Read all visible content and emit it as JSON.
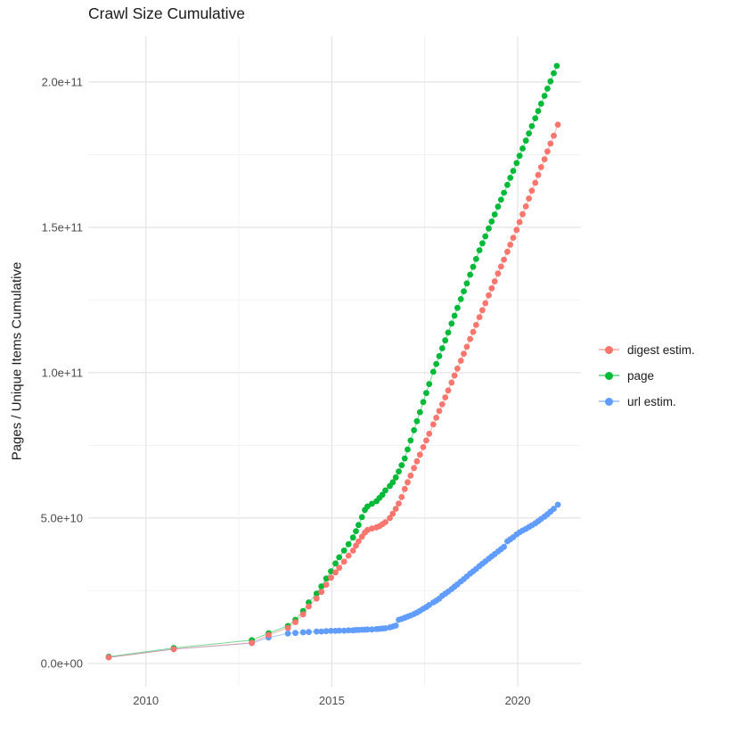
{
  "chart_data": {
    "type": "line",
    "title": "Crawl Size Cumulative",
    "xlabel": "",
    "ylabel": "Pages / Unique Items Cumulative",
    "values_unit": "items, values stored in billions (1e9)",
    "grid": "on",
    "legend_position": "right",
    "xlim": [
      2008.45,
      2021.7
    ],
    "ylim_e9": [
      -8,
      215.6
    ],
    "x_breaks": [
      2010,
      2015,
      2020
    ],
    "x_break_labels": [
      "2010",
      "2015",
      "2020"
    ],
    "x_minor_breaks": [
      2012.5,
      2017.5
    ],
    "y_breaks_e9": [
      0,
      50,
      100,
      150,
      200
    ],
    "y_break_labels": [
      "0.0e+00",
      "5.0e+10",
      "1.0e+11",
      "1.5e+11",
      "2.0e+11"
    ],
    "y_minor_breaks_e9": [
      25,
      75,
      125,
      175
    ],
    "series": [
      {
        "name": "digest estim.",
        "color": "#F8766D",
        "points": [
          [
            2009.0,
            2.1
          ],
          [
            2010.75,
            4.9
          ],
          [
            2012.85,
            7.1
          ],
          [
            2013.3,
            9.8
          ],
          [
            2013.82,
            12.2
          ],
          [
            2014.02,
            14.2
          ],
          [
            2014.23,
            16.9
          ],
          [
            2014.38,
            19.6
          ],
          [
            2014.59,
            22.3
          ],
          [
            2014.72,
            24.6
          ],
          [
            2014.85,
            27.1
          ],
          [
            2014.98,
            29.5
          ],
          [
            2015.1,
            31.3
          ],
          [
            2015.2,
            32.9
          ],
          [
            2015.33,
            35.0
          ],
          [
            2015.45,
            37.1
          ],
          [
            2015.57,
            38.8
          ],
          [
            2015.65,
            40.5
          ],
          [
            2015.72,
            42.0
          ],
          [
            2015.81,
            43.6
          ],
          [
            2015.89,
            45.0
          ],
          [
            2015.96,
            45.9
          ],
          [
            2016.08,
            46.4
          ],
          [
            2016.2,
            46.8
          ],
          [
            2016.28,
            47.2
          ],
          [
            2016.36,
            47.9
          ],
          [
            2016.44,
            48.6
          ],
          [
            2016.56,
            50.0
          ],
          [
            2016.64,
            51.5
          ],
          [
            2016.72,
            53.2
          ],
          [
            2016.8,
            55.0
          ],
          [
            2016.88,
            57.2
          ],
          [
            2016.96,
            60.0
          ],
          [
            2017.04,
            62.3
          ],
          [
            2017.12,
            64.6
          ],
          [
            2017.21,
            67.2
          ],
          [
            2017.29,
            69.5
          ],
          [
            2017.37,
            71.8
          ],
          [
            2017.46,
            74.4
          ],
          [
            2017.54,
            76.7
          ],
          [
            2017.62,
            79.0
          ],
          [
            2017.73,
            82.2
          ],
          [
            2017.81,
            84.5
          ],
          [
            2017.89,
            86.8
          ],
          [
            2017.97,
            89.1
          ],
          [
            2018.05,
            91.5
          ],
          [
            2018.13,
            93.9
          ],
          [
            2018.22,
            96.6
          ],
          [
            2018.3,
            99.0
          ],
          [
            2018.38,
            101.4
          ],
          [
            2018.47,
            104.1
          ],
          [
            2018.55,
            106.5
          ],
          [
            2018.63,
            108.9
          ],
          [
            2018.72,
            111.6
          ],
          [
            2018.8,
            114.0
          ],
          [
            2018.88,
            116.4
          ],
          [
            2018.97,
            119.1
          ],
          [
            2019.05,
            121.5
          ],
          [
            2019.13,
            123.9
          ],
          [
            2019.22,
            126.6
          ],
          [
            2019.3,
            129.0
          ],
          [
            2019.38,
            131.4
          ],
          [
            2019.47,
            134.1
          ],
          [
            2019.55,
            136.5
          ],
          [
            2019.63,
            138.9
          ],
          [
            2019.72,
            141.6
          ],
          [
            2019.8,
            144.0
          ],
          [
            2019.88,
            146.4
          ],
          [
            2019.97,
            149.1
          ],
          [
            2020.05,
            151.8
          ],
          [
            2020.13,
            154.5
          ],
          [
            2020.22,
            157.2
          ],
          [
            2020.3,
            159.9
          ],
          [
            2020.38,
            162.6
          ],
          [
            2020.47,
            165.3
          ],
          [
            2020.55,
            168.0
          ],
          [
            2020.63,
            170.7
          ],
          [
            2020.72,
            173.4
          ],
          [
            2020.8,
            176.1
          ],
          [
            2020.88,
            178.8
          ],
          [
            2020.97,
            181.5
          ],
          [
            2021.08,
            185.3
          ]
        ]
      },
      {
        "name": "page",
        "color": "#00BA38",
        "points": [
          [
            2009.0,
            2.3
          ],
          [
            2010.75,
            5.3
          ],
          [
            2012.85,
            8.0
          ],
          [
            2013.3,
            10.4
          ],
          [
            2013.82,
            12.9
          ],
          [
            2014.02,
            15.0
          ],
          [
            2014.23,
            18.0
          ],
          [
            2014.38,
            21.0
          ],
          [
            2014.59,
            24.0
          ],
          [
            2014.72,
            26.5
          ],
          [
            2014.85,
            29.2
          ],
          [
            2014.98,
            31.7
          ],
          [
            2015.1,
            34.4
          ],
          [
            2015.2,
            36.5
          ],
          [
            2015.33,
            38.8
          ],
          [
            2015.45,
            41.0
          ],
          [
            2015.57,
            43.3
          ],
          [
            2015.65,
            45.5
          ],
          [
            2015.72,
            47.6
          ],
          [
            2015.81,
            50.3
          ],
          [
            2015.89,
            52.8
          ],
          [
            2015.96,
            54.0
          ],
          [
            2016.08,
            54.9
          ],
          [
            2016.2,
            55.8
          ],
          [
            2016.28,
            56.9
          ],
          [
            2016.36,
            58.0
          ],
          [
            2016.44,
            59.5
          ],
          [
            2016.56,
            61.0
          ],
          [
            2016.64,
            62.3
          ],
          [
            2016.72,
            64.0
          ],
          [
            2016.8,
            66.0
          ],
          [
            2016.88,
            68.2
          ],
          [
            2016.96,
            70.5
          ],
          [
            2017.04,
            73.6
          ],
          [
            2017.12,
            76.7
          ],
          [
            2017.21,
            80.2
          ],
          [
            2017.29,
            83.3
          ],
          [
            2017.37,
            86.4
          ],
          [
            2017.46,
            89.9
          ],
          [
            2017.54,
            93.0
          ],
          [
            2017.62,
            96.1
          ],
          [
            2017.73,
            100.3
          ],
          [
            2017.81,
            103.0
          ],
          [
            2017.89,
            105.7
          ],
          [
            2017.97,
            108.4
          ],
          [
            2018.05,
            111.1
          ],
          [
            2018.13,
            113.8
          ],
          [
            2018.22,
            116.9
          ],
          [
            2018.3,
            119.6
          ],
          [
            2018.38,
            122.3
          ],
          [
            2018.47,
            125.3
          ],
          [
            2018.55,
            128.0
          ],
          [
            2018.63,
            130.7
          ],
          [
            2018.72,
            133.7
          ],
          [
            2018.8,
            136.4
          ],
          [
            2018.88,
            139.1
          ],
          [
            2018.97,
            142.1
          ],
          [
            2019.05,
            144.5
          ],
          [
            2019.13,
            146.9
          ],
          [
            2019.22,
            149.6
          ],
          [
            2019.3,
            152.0
          ],
          [
            2019.38,
            154.4
          ],
          [
            2019.47,
            157.1
          ],
          [
            2019.55,
            159.5
          ],
          [
            2019.63,
            161.9
          ],
          [
            2019.72,
            164.6
          ],
          [
            2019.8,
            167.0
          ],
          [
            2019.88,
            169.4
          ],
          [
            2019.97,
            172.1
          ],
          [
            2020.05,
            174.6
          ],
          [
            2020.13,
            177.1
          ],
          [
            2020.22,
            179.8
          ],
          [
            2020.3,
            182.3
          ],
          [
            2020.38,
            184.8
          ],
          [
            2020.47,
            187.5
          ],
          [
            2020.55,
            190.0
          ],
          [
            2020.63,
            192.5
          ],
          [
            2020.72,
            195.2
          ],
          [
            2020.8,
            197.7
          ],
          [
            2020.88,
            200.2
          ],
          [
            2020.97,
            203.0
          ],
          [
            2021.05,
            205.5
          ]
        ]
      },
      {
        "name": "url estim.",
        "color": "#619CFF",
        "points": [
          [
            2009.0,
            2.1
          ],
          [
            2010.75,
            4.9
          ],
          [
            2012.85,
            7.0
          ],
          [
            2013.3,
            8.9
          ],
          [
            2013.82,
            10.3
          ],
          [
            2014.02,
            10.5
          ],
          [
            2014.23,
            10.7
          ],
          [
            2014.38,
            10.8
          ],
          [
            2014.59,
            11.0
          ],
          [
            2014.72,
            11.0
          ],
          [
            2014.85,
            11.1
          ],
          [
            2014.98,
            11.2
          ],
          [
            2015.1,
            11.2
          ],
          [
            2015.2,
            11.3
          ],
          [
            2015.33,
            11.3
          ],
          [
            2015.45,
            11.4
          ],
          [
            2015.57,
            11.4
          ],
          [
            2015.65,
            11.5
          ],
          [
            2015.72,
            11.5
          ],
          [
            2015.81,
            11.6
          ],
          [
            2015.89,
            11.6
          ],
          [
            2015.96,
            11.7
          ],
          [
            2016.08,
            11.7
          ],
          [
            2016.2,
            11.8
          ],
          [
            2016.28,
            11.9
          ],
          [
            2016.36,
            12.0
          ],
          [
            2016.44,
            12.1
          ],
          [
            2016.56,
            12.4
          ],
          [
            2016.64,
            12.7
          ],
          [
            2016.72,
            13.0
          ],
          [
            2016.8,
            15.0
          ],
          [
            2016.88,
            15.3
          ],
          [
            2016.96,
            15.7
          ],
          [
            2017.04,
            16.1
          ],
          [
            2017.12,
            16.5
          ],
          [
            2017.21,
            17.0
          ],
          [
            2017.29,
            17.5
          ],
          [
            2017.37,
            18.1
          ],
          [
            2017.46,
            18.8
          ],
          [
            2017.54,
            19.4
          ],
          [
            2017.62,
            20.1
          ],
          [
            2017.73,
            21.0
          ],
          [
            2017.81,
            21.6
          ],
          [
            2017.89,
            22.3
          ],
          [
            2017.97,
            23.3
          ],
          [
            2018.05,
            24.0
          ],
          [
            2018.13,
            24.7
          ],
          [
            2018.22,
            25.6
          ],
          [
            2018.3,
            26.4
          ],
          [
            2018.38,
            27.2
          ],
          [
            2018.47,
            28.2
          ],
          [
            2018.55,
            29.0
          ],
          [
            2018.63,
            29.9
          ],
          [
            2018.72,
            30.9
          ],
          [
            2018.8,
            31.7
          ],
          [
            2018.88,
            32.5
          ],
          [
            2018.97,
            33.5
          ],
          [
            2019.05,
            34.3
          ],
          [
            2019.13,
            35.1
          ],
          [
            2019.22,
            36.0
          ],
          [
            2019.3,
            36.8
          ],
          [
            2019.38,
            37.6
          ],
          [
            2019.47,
            38.5
          ],
          [
            2019.55,
            39.3
          ],
          [
            2019.63,
            40.1
          ],
          [
            2019.72,
            42.0
          ],
          [
            2019.8,
            42.7
          ],
          [
            2019.88,
            43.4
          ],
          [
            2019.97,
            44.4
          ],
          [
            2020.05,
            45.1
          ],
          [
            2020.13,
            45.7
          ],
          [
            2020.22,
            46.3
          ],
          [
            2020.3,
            46.9
          ],
          [
            2020.38,
            47.5
          ],
          [
            2020.47,
            48.2
          ],
          [
            2020.55,
            48.9
          ],
          [
            2020.63,
            49.7
          ],
          [
            2020.72,
            50.5
          ],
          [
            2020.8,
            51.3
          ],
          [
            2020.88,
            52.2
          ],
          [
            2020.97,
            53.2
          ],
          [
            2021.08,
            54.6
          ]
        ]
      }
    ],
    "legend": {
      "entries": [
        "digest estim.",
        "page",
        "url estim."
      ]
    },
    "colors": {
      "grid_major": "#E4E4E4",
      "grid_minor": "#F0F0F0",
      "tick_label": "#4D4D4D",
      "text": "#1A1A1A",
      "background": "#FFFFFF"
    }
  }
}
